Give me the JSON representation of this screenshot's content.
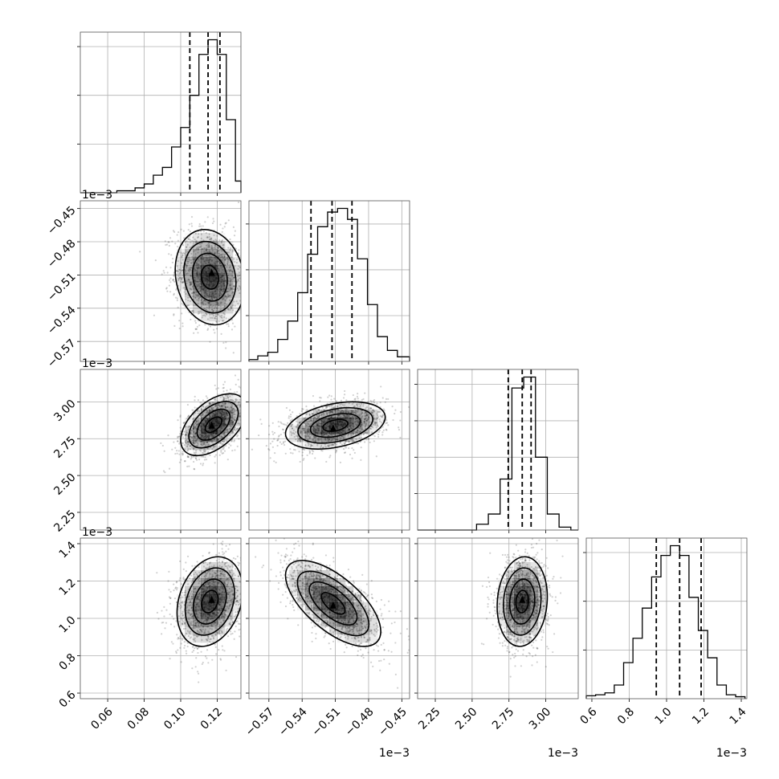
{
  "chart_data": {
    "type": "corner",
    "parameters": [
      {
        "id": "p0",
        "range": [
          0.045,
          0.133
        ],
        "ticks": [
          0.06,
          0.08,
          0.1,
          0.12
        ],
        "tick_labels": [
          "0.06",
          "0.08",
          "0.10",
          "0.12"
        ],
        "multiplier": ""
      },
      {
        "id": "p1",
        "range": [
          -0.588,
          -0.443
        ],
        "ticks": [
          -0.57,
          -0.54,
          -0.51,
          -0.48,
          -0.45
        ],
        "tick_labels": [
          "−0.57",
          "−0.54",
          "−0.51",
          "−0.48",
          "−0.45"
        ],
        "multiplier": "1e−3"
      },
      {
        "id": "p2",
        "range": [
          2.13,
          3.22
        ],
        "ticks": [
          2.25,
          2.5,
          2.75,
          3.0
        ],
        "tick_labels": [
          "2.25",
          "2.50",
          "2.75",
          "3.00"
        ],
        "multiplier": "1e−3"
      },
      {
        "id": "p3",
        "range": [
          0.57,
          1.43
        ],
        "ticks": [
          0.6,
          0.8,
          1.0,
          1.2,
          1.4
        ],
        "tick_labels": [
          "0.6",
          "0.8",
          "1.0",
          "1.2",
          "1.4"
        ],
        "multiplier": "1e−3"
      }
    ],
    "diagonal": [
      {
        "param": "p0",
        "quantiles": [
          0.105,
          0.115,
          0.1215
        ],
        "edges": [
          0.045,
          0.05,
          0.055,
          0.06,
          0.065,
          0.07,
          0.075,
          0.08,
          0.085,
          0.09,
          0.095,
          0.1,
          0.105,
          0.11,
          0.115,
          0.12,
          0.125,
          0.13,
          0.133
        ],
        "counts": [
          0,
          0,
          0,
          0,
          2,
          2,
          5,
          9,
          18,
          26,
          47,
          67,
          100,
          142,
          157,
          142,
          75,
          12
        ]
      },
      {
        "param": "p1",
        "quantiles": [
          -0.532,
          -0.513,
          -0.495
        ],
        "edges": [
          -0.588,
          -0.58,
          -0.571,
          -0.562,
          -0.553,
          -0.544,
          -0.535,
          -0.526,
          -0.517,
          -0.508,
          -0.499,
          -0.49,
          -0.481,
          -0.472,
          -0.463,
          -0.454,
          -0.443
        ],
        "counts": [
          2,
          6,
          10,
          24,
          44,
          75,
          117,
          147,
          163,
          167,
          155,
          112,
          62,
          27,
          12,
          5
        ]
      },
      {
        "param": "p2",
        "quantiles": [
          2.745,
          2.84,
          2.9
        ],
        "edges": [
          2.13,
          2.21,
          2.29,
          2.37,
          2.45,
          2.53,
          2.61,
          2.69,
          2.77,
          2.85,
          2.93,
          3.01,
          3.09,
          3.17,
          3.22
        ],
        "counts": [
          0,
          0,
          0,
          0,
          0,
          8,
          22,
          70,
          195,
          210,
          100,
          22,
          4,
          0
        ]
      },
      {
        "param": "p3",
        "quantiles": [
          0.945,
          1.07,
          1.185
        ],
        "edges": [
          0.57,
          0.62,
          0.67,
          0.72,
          0.77,
          0.82,
          0.87,
          0.92,
          0.97,
          1.02,
          1.07,
          1.12,
          1.17,
          1.22,
          1.27,
          1.32,
          1.37,
          1.42
        ],
        "counts": [
          3,
          4,
          6,
          14,
          37,
          62,
          93,
          125,
          147,
          157,
          147,
          104,
          70,
          42,
          14,
          4,
          2
        ]
      }
    ],
    "pairs": [
      {
        "x": "p0",
        "y": "p1",
        "mean": [
          0.116,
          -0.512
        ],
        "std": [
          0.0095,
          0.0215
        ],
        "corr": -0.15,
        "peak": [
          0.117,
          -0.508
        ]
      },
      {
        "x": "p0",
        "y": "p2",
        "mean": [
          0.118,
          2.845
        ],
        "std": [
          0.009,
          0.105
        ],
        "corr": 0.5,
        "peak": [
          0.117,
          2.84
        ]
      },
      {
        "x": "p1",
        "y": "p2",
        "mean": [
          -0.51,
          2.84
        ],
        "std": [
          0.0225,
          0.08
        ],
        "corr": 0.35,
        "peak": [
          -0.512,
          2.82
        ]
      },
      {
        "x": "p0",
        "y": "p3",
        "mean": [
          0.116,
          1.09
        ],
        "std": [
          0.009,
          0.12
        ],
        "corr": 0.25,
        "peak": [
          0.117,
          1.1
        ]
      },
      {
        "x": "p1",
        "y": "p3",
        "mean": [
          -0.512,
          1.08
        ],
        "std": [
          0.0215,
          0.115
        ],
        "corr": -0.65,
        "peak": [
          -0.512,
          1.07
        ]
      },
      {
        "x": "p2",
        "y": "p3",
        "mean": [
          2.84,
          1.09
        ],
        "std": [
          0.085,
          0.12
        ],
        "corr": 0.1,
        "peak": [
          2.84,
          1.1
        ]
      }
    ],
    "contour_levels_sigma": [
      0.5,
      1.0,
      1.5,
      2.0
    ],
    "grid": true
  }
}
